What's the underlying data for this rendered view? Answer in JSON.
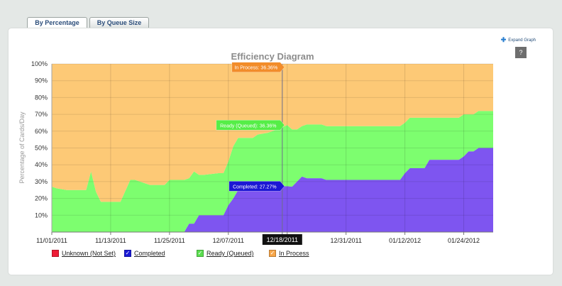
{
  "tabs": [
    {
      "label": "By Percentage",
      "active": true
    },
    {
      "label": "By Queue Size",
      "active": false
    }
  ],
  "expand_label": "Expand Graph",
  "help_label": "?",
  "colors": {
    "unknown": "#ee1c36",
    "completed": "#7e55f0",
    "ready": "#7dfe6f",
    "in_process": "#fdc976",
    "completed_legend": "#1a1ad6",
    "ready_legend": "#5bde4f",
    "in_process_legend": "#f7a649"
  },
  "chart_data": {
    "type": "area",
    "title": "Efficiency Diagram",
    "xlabel": "",
    "ylabel": "Percentage of Cards/Day",
    "y_ticks": [
      "10%",
      "20%",
      "30%",
      "40%",
      "50%",
      "60%",
      "70%",
      "80%",
      "90%",
      "100%"
    ],
    "x_ticks": [
      "11/01/2011",
      "11/13/2011",
      "11/25/2011",
      "12/07/2011",
      "12/19/2011",
      "12/31/2011",
      "01/12/2012",
      "01/24/2012"
    ],
    "ylim": [
      0,
      100
    ],
    "stacked": true,
    "x": [
      "2011-11-01",
      "2011-11-02",
      "2011-11-04",
      "2011-11-07",
      "2011-11-08",
      "2011-11-09",
      "2011-11-10",
      "2011-11-11",
      "2011-11-14",
      "2011-11-15",
      "2011-11-17",
      "2011-11-18",
      "2011-11-21",
      "2011-11-23",
      "2011-11-24",
      "2011-11-25",
      "2011-11-28",
      "2011-11-29",
      "2011-11-30",
      "2011-12-01",
      "2011-12-02",
      "2011-12-05",
      "2011-12-06",
      "2011-12-07",
      "2011-12-08",
      "2011-12-09",
      "2011-12-12",
      "2011-12-13",
      "2011-12-15",
      "2011-12-16",
      "2011-12-19",
      "2011-12-20",
      "2011-12-21",
      "2011-12-22",
      "2011-12-23",
      "2011-12-26",
      "2011-12-27",
      "2011-12-28",
      "2011-12-30",
      "2012-01-02",
      "2012-01-04",
      "2012-01-06",
      "2012-01-09",
      "2012-01-10",
      "2012-01-11",
      "2012-01-12",
      "2012-01-13",
      "2012-01-16",
      "2012-01-17",
      "2012-01-18",
      "2012-01-19",
      "2012-01-20",
      "2012-01-23",
      "2012-01-24",
      "2012-01-25",
      "2012-01-26",
      "2012-01-27",
      "2012-01-30"
    ],
    "series": [
      {
        "name": "Completed",
        "values": [
          0,
          0,
          0,
          0,
          0,
          0,
          0,
          0,
          0,
          0,
          0,
          0,
          0,
          0,
          0,
          0,
          0,
          5,
          5,
          10,
          10,
          10,
          10,
          16,
          20,
          25,
          25,
          27,
          27,
          27,
          27.27,
          27,
          30,
          33,
          32,
          32,
          31,
          31,
          31,
          31,
          31,
          31,
          31,
          31,
          31,
          35,
          38,
          38,
          43,
          43,
          43,
          43,
          43,
          45,
          48,
          48,
          50,
          50
        ]
      },
      {
        "name": "Ready (Queued)",
        "values": [
          27,
          26,
          25,
          25,
          25,
          36,
          24,
          18,
          18,
          18,
          31,
          31,
          28,
          28,
          28,
          31,
          31,
          27,
          31,
          24,
          24,
          25,
          25,
          26,
          31,
          31,
          31,
          31,
          32,
          33,
          36.36,
          34,
          31,
          30,
          32,
          32,
          32,
          32,
          32,
          32,
          32,
          32,
          32,
          32,
          32,
          30,
          30,
          30,
          25,
          25,
          25,
          25,
          25,
          25,
          22,
          22,
          22,
          22
        ]
      },
      {
        "name": "In Process",
        "values": [
          73,
          74,
          75,
          75,
          75,
          64,
          76,
          82,
          82,
          82,
          69,
          69,
          72,
          72,
          72,
          69,
          69,
          68,
          64,
          66,
          66,
          65,
          65,
          58,
          49,
          44,
          44,
          42,
          41,
          40,
          36.36,
          39,
          39,
          37,
          36,
          36,
          37,
          37,
          37,
          37,
          37,
          37,
          37,
          37,
          37,
          35,
          32,
          32,
          32,
          32,
          32,
          32,
          32,
          30,
          30,
          30,
          28,
          28
        ]
      }
    ],
    "hover_date": "12/18/2011",
    "tooltips": [
      {
        "series": "In Process",
        "text": "In Process: 36.36%"
      },
      {
        "series": "Ready (Queued)",
        "text": "Ready (Queued): 36.36%"
      },
      {
        "series": "Completed",
        "text": "Completed: 27.27%"
      }
    ],
    "legend": [
      {
        "name": "Unknown (Not Set)",
        "checked": false,
        "color_key": "unknown"
      },
      {
        "name": "Completed",
        "checked": true,
        "color_key": "completed_legend"
      },
      {
        "name": "Ready (Queued)",
        "checked": true,
        "color_key": "ready_legend"
      },
      {
        "name": "In Process",
        "checked": true,
        "color_key": "in_process_legend"
      }
    ]
  }
}
